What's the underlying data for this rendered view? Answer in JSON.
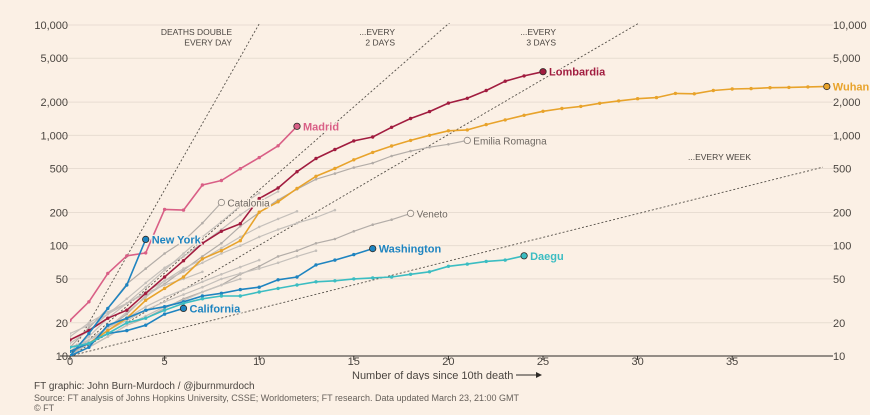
{
  "chart_data": {
    "type": "line",
    "yscale": "log",
    "xlabel": "Number of days since 10th death",
    "xlim": [
      0,
      39.8
    ],
    "ylim": [
      10,
      10000
    ],
    "x_ticks": [
      0,
      5,
      10,
      15,
      20,
      25,
      30,
      35
    ],
    "y_ticks": [
      10,
      20,
      50,
      100,
      200,
      500,
      1000,
      2000,
      5000,
      10000
    ],
    "y_tick_labels": [
      "10",
      "20",
      "50",
      "100",
      "200",
      "500",
      "1,000",
      "2,000",
      "5,000",
      "10,000"
    ],
    "gridlines": "horizontal",
    "reference_lines": [
      {
        "name": "double-daily",
        "doubling_days": 1,
        "label_lines": [
          "DEATHS DOUBLE",
          "EVERY DAY"
        ]
      },
      {
        "name": "double-2-days",
        "doubling_days": 2,
        "label_lines": [
          "...EVERY",
          "2 DAYS"
        ]
      },
      {
        "name": "double-3-days",
        "doubling_days": 3,
        "label_lines": [
          "...EVERY",
          "3 DAYS"
        ]
      },
      {
        "name": "double-week",
        "doubling_days": 7,
        "label_lines": [
          "...EVERY WEEK"
        ]
      }
    ],
    "series": [
      {
        "name": "Lombardia",
        "color": "#a11c3f",
        "highlight": true,
        "values": [
          14,
          17,
          22,
          26,
          37,
          52,
          73,
          105,
          135,
          158,
          267,
          333,
          468,
          617,
          744,
          890,
          966,
          1183,
          1420,
          1640,
          1959,
          2168,
          2549,
          3095,
          3456,
          3776
        ]
      },
      {
        "name": "Wuhan",
        "color": "#e8a32b",
        "highlight": true,
        "values": [
          11,
          13,
          17,
          22,
          32,
          41,
          52,
          76,
          90,
          111,
          201,
          250,
          330,
          425,
          500,
          600,
          700,
          800,
          900,
          1000,
          1100,
          1120,
          1250,
          1380,
          1520,
          1650,
          1750,
          1830,
          1950,
          2050,
          2150,
          2200,
          2400,
          2380,
          2550,
          2630,
          2650,
          2700,
          2720,
          2750,
          2770
        ]
      },
      {
        "name": "Madrid",
        "color": "#d95f86",
        "highlight": true,
        "values": [
          21,
          31,
          56,
          81,
          86,
          213,
          210,
          355,
          390,
          498,
          628,
          804,
          1207
        ]
      },
      {
        "name": "New York",
        "color": "#1e84c0",
        "highlight": true,
        "values": [
          10,
          16,
          27,
          44,
          114
        ]
      },
      {
        "name": "Washington",
        "color": "#1e84c0",
        "highlight": true,
        "values": [
          10,
          12,
          19,
          22,
          26,
          28,
          31,
          35,
          37,
          40,
          42,
          49,
          52,
          67,
          74,
          83,
          94
        ]
      },
      {
        "name": "California",
        "color": "#1e84c0",
        "highlight": true,
        "values": [
          11,
          13,
          16,
          17,
          19,
          24,
          27
        ]
      },
      {
        "name": "Daegu",
        "color": "#3bbdc2",
        "highlight": true,
        "values": [
          12,
          13,
          16,
          20,
          22,
          26,
          30,
          33,
          35,
          35,
          38,
          41,
          44,
          47,
          48,
          50,
          51,
          52,
          55,
          58,
          65,
          68,
          72,
          74,
          81
        ]
      },
      {
        "name": "Catalonia",
        "color": "#b3ada8",
        "highlight": false,
        "values": [
          12,
          18,
          27,
          45,
          62,
          85,
          110,
          160,
          246
        ]
      },
      {
        "name": "Emilia Romagna",
        "color": "#b3ada8",
        "highlight": false,
        "values": [
          10,
          14,
          18,
          24,
          35,
          45,
          60,
          80,
          105,
          150,
          200,
          260,
          325,
          400,
          450,
          510,
          560,
          650,
          720,
          780,
          830,
          900
        ]
      },
      {
        "name": "Veneto",
        "color": "#b3ada8",
        "highlight": false,
        "values": [
          10,
          12,
          15,
          19,
          22,
          27,
          33,
          38,
          44,
          55,
          65,
          80,
          90,
          105,
          115,
          135,
          155,
          172,
          196
        ]
      },
      {
        "name": "",
        "color": "#c5c0bb",
        "highlight": false,
        "values": [
          11,
          15,
          22,
          30,
          42,
          60,
          85,
          120,
          165,
          230,
          300
        ]
      },
      {
        "name": "",
        "color": "#c5c0bb",
        "highlight": false,
        "values": [
          13,
          17,
          24,
          33,
          46,
          63,
          80,
          105,
          140,
          190,
          250,
          310
        ]
      },
      {
        "name": "",
        "color": "#c5c0bb",
        "highlight": false,
        "values": [
          10,
          13,
          18,
          25,
          34,
          48,
          62,
          75,
          95,
          120,
          148,
          175,
          205
        ]
      },
      {
        "name": "",
        "color": "#c5c0bb",
        "highlight": false,
        "values": [
          15,
          20,
          25,
          30,
          38,
          48,
          58,
          70,
          85,
          100,
          120,
          140,
          160,
          180,
          210
        ]
      },
      {
        "name": "",
        "color": "#c5c0bb",
        "highlight": false,
        "values": [
          12,
          14,
          17,
          21,
          26,
          31,
          36,
          42,
          50,
          56,
          62,
          70,
          80,
          90
        ]
      },
      {
        "name": "",
        "color": "#c5c0bb",
        "highlight": false,
        "values": [
          10,
          12,
          15,
          19,
          23,
          28,
          32,
          38,
          44,
          50
        ]
      },
      {
        "name": "",
        "color": "#c5c0bb",
        "highlight": false,
        "values": [
          16,
          19,
          24,
          30,
          37,
          44,
          50,
          58
        ]
      },
      {
        "name": "",
        "color": "#c5c0bb",
        "highlight": false,
        "values": [
          11,
          14,
          18,
          22,
          28,
          34,
          40,
          47,
          55,
          64,
          74
        ]
      }
    ]
  },
  "footer": {
    "credit": "FT graphic: John Burn-Murdoch / @jburnmurdoch",
    "source": "Source: FT analysis of Johns Hopkins University, CSSE; Worldometers; FT research. Data updated March 23, 21:00 GMT",
    "copyright": "© FT"
  },
  "colors": {
    "background": "#fbf0e5",
    "grid": "#e8ddd2",
    "axis_text": "#4a4540",
    "reference_line": "#555049"
  }
}
